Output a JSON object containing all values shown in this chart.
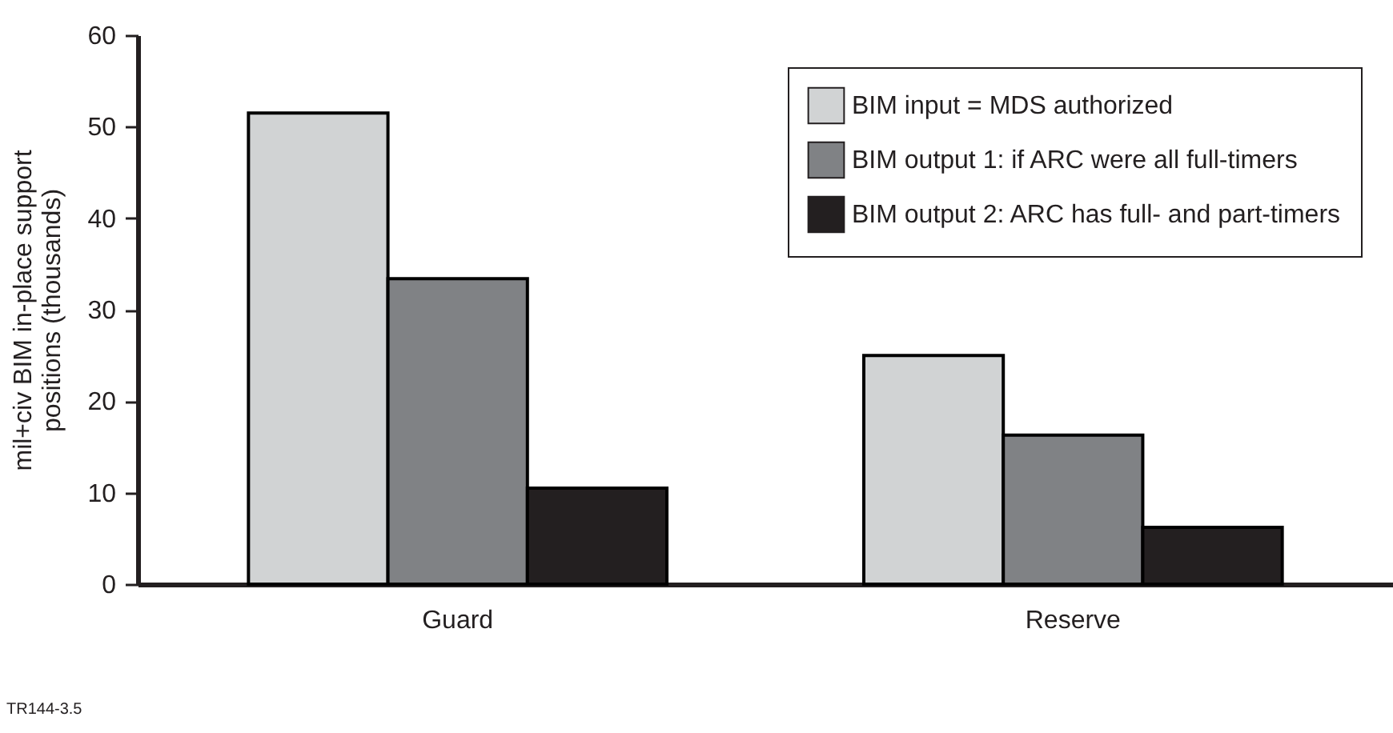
{
  "chart_data": {
    "type": "bar",
    "ylabel": "mil+civ BIM in-place support\npositions (thousands)",
    "categories": [
      "Guard",
      "Reserve"
    ],
    "series": [
      {
        "name": "BIM input = MDS authorized",
        "color": "#d1d3d4",
        "values": [
          51.5,
          25.0
        ]
      },
      {
        "name": "BIM output 1: if ARC were all full-timers",
        "color": "#808285",
        "values": [
          33.4,
          16.3
        ]
      },
      {
        "name": "BIM output 2: ARC has full- and part-timers",
        "color": "#231f20",
        "values": [
          10.5,
          6.2
        ]
      }
    ],
    "ylim": [
      0,
      60
    ],
    "yticks": [
      0,
      10,
      20,
      30,
      40,
      50,
      60
    ],
    "grid": false,
    "legend": "top right",
    "annotations": [
      "TR144-3.5"
    ]
  }
}
